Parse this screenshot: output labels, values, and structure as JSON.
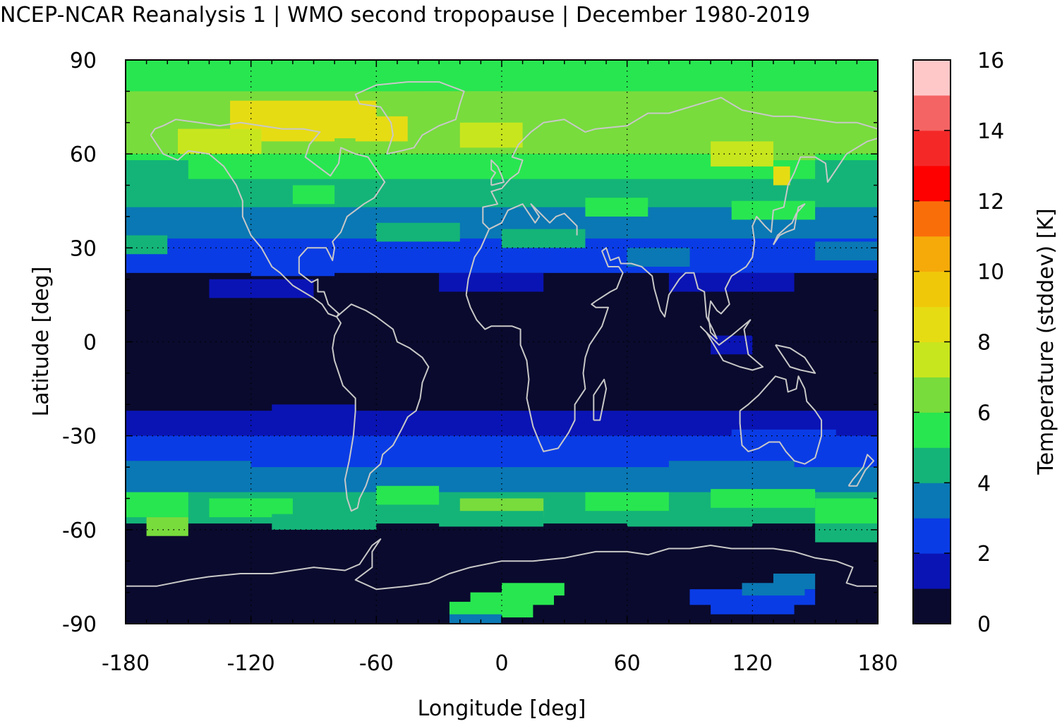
{
  "title": "NCEP-NCAR Reanalysis 1 | WMO second tropopause | December 1980-2019",
  "map": {
    "xlabel": "Longitude [deg]",
    "ylabel": "Latitude [deg]",
    "xlim": [
      -180,
      180
    ],
    "ylim": [
      -90,
      90
    ],
    "xticks": [
      "-180",
      "-120",
      "-60",
      "0",
      "60",
      "120",
      "180"
    ],
    "yticks": [
      "90",
      "60",
      "30",
      "0",
      "-30",
      "-60",
      "-90"
    ],
    "grid": "dotted",
    "coastlines_color": "#c8c8c8",
    "field_bands": [
      {
        "lat": [
          90,
          80
        ],
        "value": 5.6
      },
      {
        "lat": [
          80,
          70
        ],
        "value": 6.8
      },
      {
        "lat": [
          70,
          60
        ],
        "value": 6.4
      },
      {
        "lat": [
          60,
          52
        ],
        "value": 5.4
      },
      {
        "lat": [
          52,
          43
        ],
        "value": 4.6
      },
      {
        "lat": [
          43,
          33
        ],
        "value": 3.6
      },
      {
        "lat": [
          33,
          22
        ],
        "value": 2.4
      },
      {
        "lat": [
          22,
          -22
        ],
        "value": 0.4
      },
      {
        "lat": [
          -22,
          -30
        ],
        "value": 1.6
      },
      {
        "lat": [
          -30,
          -40
        ],
        "value": 2.5
      },
      {
        "lat": [
          -40,
          -48
        ],
        "value": 3.6
      },
      {
        "lat": [
          -48,
          -58
        ],
        "value": 4.4
      },
      {
        "lat": [
          -58,
          -90
        ],
        "value": 0.4
      }
    ]
  },
  "colorbar": {
    "label": "Temperature (stddev) [K]",
    "ticks": [
      "0",
      "2",
      "4",
      "6",
      "8",
      "10",
      "12",
      "14",
      "16"
    ],
    "range": [
      0,
      16
    ],
    "colors": [
      "#0a0a2e",
      "#0a14b4",
      "#0a3ce6",
      "#0a78b4",
      "#14b478",
      "#28e650",
      "#78dc3c",
      "#c8e61e",
      "#e6dc14",
      "#f0c80a",
      "#f5aa0a",
      "#fa6e0a",
      "#ff0000",
      "#f52828",
      "#f56464",
      "#ffc8c8"
    ]
  }
}
